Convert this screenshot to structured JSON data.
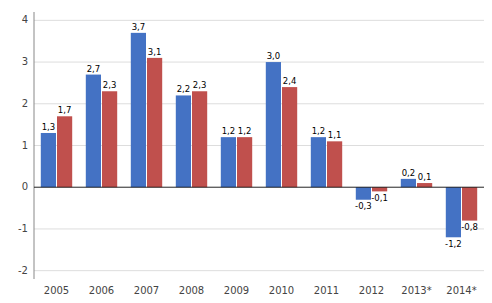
{
  "chart_data": {
    "type": "bar",
    "categories": [
      "2005",
      "2006",
      "2007",
      "2008",
      "2009",
      "2010",
      "2011",
      "2012",
      "2013*",
      "2014*"
    ],
    "series": [
      {
        "color": "#4472C4",
        "values": [
          1.3,
          2.7,
          3.7,
          2.2,
          1.2,
          3.0,
          1.2,
          -0.3,
          0.2,
          -1.2
        ],
        "value_labels": [
          "1,3",
          "2,7",
          "3,7",
          "2,2",
          "1,2",
          "3,0",
          "1,2",
          "-0,3",
          "0,2",
          "-1,2"
        ]
      },
      {
        "color": "#C0504D",
        "values": [
          1.7,
          2.3,
          3.1,
          2.3,
          1.2,
          2.4,
          1.1,
          -0.1,
          0.1,
          -0.8
        ],
        "value_labels": [
          "1,7",
          "2,3",
          "3,1",
          "2,3",
          "1,2",
          "2,4",
          "1,1",
          "-0,1",
          "0,1",
          "-0,8"
        ]
      }
    ],
    "ylim": [
      -2.2,
      4.2
    ],
    "yticks": [
      -2,
      -1,
      0,
      1,
      2,
      3,
      4
    ],
    "grid": true,
    "data_labels": true
  }
}
